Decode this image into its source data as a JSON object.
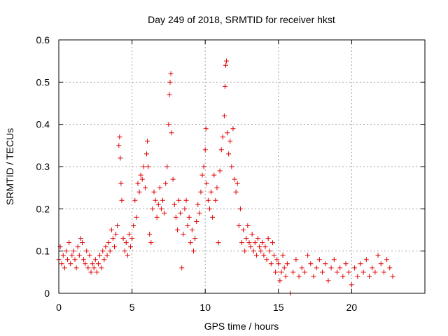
{
  "chart_data": {
    "type": "scatter",
    "title": "Day 249 of 2018, SRMTID for receiver hkst",
    "xlabel": "GPS time / hours",
    "ylabel": "SRMTID / TECUs",
    "xlim": [
      0,
      25
    ],
    "ylim": [
      0,
      0.6
    ],
    "xticks": [
      0,
      5,
      10,
      15,
      20
    ],
    "xtick_labels": [
      "0",
      "5",
      "10",
      "15",
      "20"
    ],
    "yticks": [
      0,
      0.1,
      0.2,
      0.3,
      0.4,
      0.5,
      0.6
    ],
    "ytick_labels": [
      "0",
      "0.1",
      "0.2",
      "0.3",
      "0.4",
      "0.5",
      "0.6"
    ],
    "grid": true,
    "marker": "+",
    "color": "#e00000",
    "series": [
      {
        "name": "SRMTID",
        "points": [
          [
            0.0,
            0.08
          ],
          [
            0.1,
            0.11
          ],
          [
            0.2,
            0.07
          ],
          [
            0.3,
            0.09
          ],
          [
            0.4,
            0.06
          ],
          [
            0.5,
            0.1
          ],
          [
            0.6,
            0.08
          ],
          [
            0.7,
            0.12
          ],
          [
            0.8,
            0.07
          ],
          [
            0.9,
            0.09
          ],
          [
            1.0,
            0.1
          ],
          [
            1.1,
            0.08
          ],
          [
            1.2,
            0.06
          ],
          [
            1.3,
            0.11
          ],
          [
            1.4,
            0.09
          ],
          [
            1.5,
            0.13
          ],
          [
            1.6,
            0.12
          ],
          [
            1.7,
            0.08
          ],
          [
            1.8,
            0.07
          ],
          [
            1.9,
            0.1
          ],
          [
            2.0,
            0.06
          ],
          [
            2.1,
            0.09
          ],
          [
            2.2,
            0.05
          ],
          [
            2.3,
            0.07
          ],
          [
            2.4,
            0.06
          ],
          [
            2.5,
            0.08
          ],
          [
            2.6,
            0.05
          ],
          [
            2.7,
            0.07
          ],
          [
            2.8,
            0.09
          ],
          [
            2.9,
            0.06
          ],
          [
            3.0,
            0.1
          ],
          [
            3.1,
            0.08
          ],
          [
            3.2,
            0.11
          ],
          [
            3.3,
            0.09
          ],
          [
            3.4,
            0.12
          ],
          [
            3.5,
            0.1
          ],
          [
            3.6,
            0.15
          ],
          [
            3.7,
            0.13
          ],
          [
            3.8,
            0.11
          ],
          [
            3.9,
            0.14
          ],
          [
            4.0,
            0.16
          ],
          [
            4.1,
            0.35
          ],
          [
            4.15,
            0.37
          ],
          [
            4.2,
            0.32
          ],
          [
            4.25,
            0.26
          ],
          [
            4.3,
            0.22
          ],
          [
            4.4,
            0.13
          ],
          [
            4.5,
            0.1
          ],
          [
            4.6,
            0.12
          ],
          [
            4.7,
            0.09
          ],
          [
            4.8,
            0.14
          ],
          [
            4.9,
            0.11
          ],
          [
            5.0,
            0.13
          ],
          [
            5.1,
            0.16
          ],
          [
            5.2,
            0.22
          ],
          [
            5.3,
            0.18
          ],
          [
            5.4,
            0.26
          ],
          [
            5.5,
            0.24
          ],
          [
            5.6,
            0.28
          ],
          [
            5.7,
            0.27
          ],
          [
            5.8,
            0.3
          ],
          [
            5.9,
            0.25
          ],
          [
            6.0,
            0.33
          ],
          [
            6.05,
            0.36
          ],
          [
            6.1,
            0.3
          ],
          [
            6.2,
            0.14
          ],
          [
            6.3,
            0.12
          ],
          [
            6.4,
            0.2
          ],
          [
            6.5,
            0.24
          ],
          [
            6.6,
            0.22
          ],
          [
            6.7,
            0.18
          ],
          [
            6.8,
            0.21
          ],
          [
            6.9,
            0.25
          ],
          [
            7.0,
            0.2
          ],
          [
            7.1,
            0.22
          ],
          [
            7.2,
            0.19
          ],
          [
            7.3,
            0.26
          ],
          [
            7.4,
            0.3
          ],
          [
            7.5,
            0.4
          ],
          [
            7.55,
            0.47
          ],
          [
            7.6,
            0.5
          ],
          [
            7.65,
            0.52
          ],
          [
            7.7,
            0.38
          ],
          [
            7.8,
            0.27
          ],
          [
            7.9,
            0.21
          ],
          [
            8.0,
            0.18
          ],
          [
            8.1,
            0.15
          ],
          [
            8.2,
            0.22
          ],
          [
            8.3,
            0.19
          ],
          [
            8.4,
            0.06
          ],
          [
            8.5,
            0.14
          ],
          [
            8.6,
            0.2
          ],
          [
            8.7,
            0.22
          ],
          [
            8.8,
            0.16
          ],
          [
            8.9,
            0.18
          ],
          [
            9.0,
            0.12
          ],
          [
            9.1,
            0.15
          ],
          [
            9.2,
            0.1
          ],
          [
            9.3,
            0.13
          ],
          [
            9.4,
            0.17
          ],
          [
            9.5,
            0.21
          ],
          [
            9.6,
            0.19
          ],
          [
            9.7,
            0.24
          ],
          [
            9.8,
            0.28
          ],
          [
            9.9,
            0.3
          ],
          [
            10.0,
            0.34
          ],
          [
            10.05,
            0.39
          ],
          [
            10.1,
            0.26
          ],
          [
            10.2,
            0.22
          ],
          [
            10.3,
            0.2
          ],
          [
            10.4,
            0.24
          ],
          [
            10.5,
            0.18
          ],
          [
            10.6,
            0.28
          ],
          [
            10.7,
            0.22
          ],
          [
            10.8,
            0.25
          ],
          [
            10.9,
            0.12
          ],
          [
            11.0,
            0.29
          ],
          [
            11.1,
            0.34
          ],
          [
            11.2,
            0.37
          ],
          [
            11.3,
            0.42
          ],
          [
            11.35,
            0.49
          ],
          [
            11.4,
            0.54
          ],
          [
            11.45,
            0.55
          ],
          [
            11.5,
            0.38
          ],
          [
            11.6,
            0.33
          ],
          [
            11.7,
            0.36
          ],
          [
            11.8,
            0.3
          ],
          [
            11.9,
            0.39
          ],
          [
            12.0,
            0.27
          ],
          [
            12.1,
            0.24
          ],
          [
            12.2,
            0.26
          ],
          [
            12.3,
            0.16
          ],
          [
            12.4,
            0.2
          ],
          [
            12.5,
            0.12
          ],
          [
            12.6,
            0.15
          ],
          [
            12.7,
            0.1
          ],
          [
            12.8,
            0.13
          ],
          [
            12.9,
            0.16
          ],
          [
            13.0,
            0.12
          ],
          [
            13.1,
            0.11
          ],
          [
            13.2,
            0.14
          ],
          [
            13.3,
            0.1
          ],
          [
            13.4,
            0.12
          ],
          [
            13.5,
            0.09
          ],
          [
            13.6,
            0.13
          ],
          [
            13.7,
            0.11
          ],
          [
            13.8,
            0.1
          ],
          [
            13.9,
            0.12
          ],
          [
            14.0,
            0.09
          ],
          [
            14.1,
            0.11
          ],
          [
            14.2,
            0.08
          ],
          [
            14.3,
            0.13
          ],
          [
            14.4,
            0.1
          ],
          [
            14.5,
            0.07
          ],
          [
            14.6,
            0.12
          ],
          [
            14.7,
            0.09
          ],
          [
            14.8,
            0.05
          ],
          [
            14.9,
            0.08
          ],
          [
            15.0,
            0.07
          ],
          [
            15.1,
            0.03
          ],
          [
            15.2,
            0.05
          ],
          [
            15.3,
            0.09
          ],
          [
            15.4,
            0.06
          ],
          [
            15.5,
            0.04
          ],
          [
            15.6,
            0.07
          ],
          [
            15.8,
            0.0
          ],
          [
            16.0,
            0.05
          ],
          [
            16.2,
            0.08
          ],
          [
            16.4,
            0.04
          ],
          [
            16.6,
            0.06
          ],
          [
            16.8,
            0.05
          ],
          [
            17.0,
            0.09
          ],
          [
            17.2,
            0.07
          ],
          [
            17.4,
            0.04
          ],
          [
            17.6,
            0.06
          ],
          [
            17.8,
            0.08
          ],
          [
            18.0,
            0.05
          ],
          [
            18.2,
            0.07
          ],
          [
            18.4,
            0.03
          ],
          [
            18.6,
            0.06
          ],
          [
            18.8,
            0.08
          ],
          [
            19.0,
            0.05
          ],
          [
            19.2,
            0.06
          ],
          [
            19.4,
            0.04
          ],
          [
            19.6,
            0.07
          ],
          [
            19.8,
            0.05
          ],
          [
            20.0,
            0.02
          ],
          [
            20.2,
            0.06
          ],
          [
            20.4,
            0.04
          ],
          [
            20.6,
            0.07
          ],
          [
            20.8,
            0.05
          ],
          [
            21.0,
            0.08
          ],
          [
            21.2,
            0.04
          ],
          [
            21.4,
            0.06
          ],
          [
            21.6,
            0.05
          ],
          [
            21.8,
            0.09
          ],
          [
            22.0,
            0.07
          ],
          [
            22.2,
            0.05
          ],
          [
            22.4,
            0.08
          ],
          [
            22.6,
            0.06
          ],
          [
            22.8,
            0.04
          ]
        ]
      }
    ]
  }
}
